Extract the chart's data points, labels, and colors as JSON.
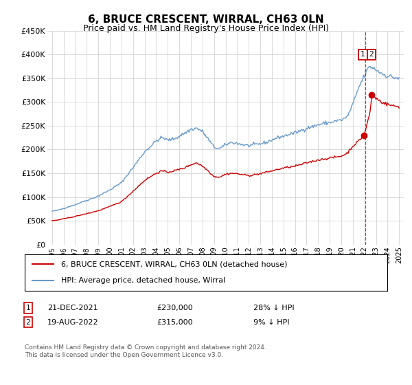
{
  "title": "6, BRUCE CRESCENT, WIRRAL, CH63 0LN",
  "subtitle": "Price paid vs. HM Land Registry's House Price Index (HPI)",
  "footnote": "Contains HM Land Registry data © Crown copyright and database right 2024.\nThis data is licensed under the Open Government Licence v3.0.",
  "legend_label_red": "6, BRUCE CRESCENT, WIRRAL, CH63 0LN (detached house)",
  "legend_label_blue": "HPI: Average price, detached house, Wirral",
  "annotation1_date": "21-DEC-2021",
  "annotation1_price": "£230,000",
  "annotation1_pct": "28% ↓ HPI",
  "annotation2_date": "19-AUG-2022",
  "annotation2_price": "£315,000",
  "annotation2_pct": "9% ↓ HPI",
  "red_color": "#cc0000",
  "blue_color": "#6699cc",
  "grid_color": "#cccccc",
  "background_color": "#ffffff",
  "ylim": [
    0,
    450000
  ],
  "yticks": [
    0,
    50000,
    100000,
    150000,
    200000,
    250000,
    300000,
    350000,
    400000,
    450000
  ],
  "ytick_labels": [
    "£0",
    "£50K",
    "£100K",
    "£150K",
    "£200K",
    "£250K",
    "£300K",
    "£350K",
    "£400K",
    "£450K"
  ],
  "sale1_x": 2021.97,
  "sale1_y": 230000,
  "sale2_x": 2022.63,
  "sale2_y": 315000,
  "vline_x": 2022.05,
  "xlim_left": 1994.6,
  "xlim_right": 2025.4,
  "xtick_years": [
    1995,
    1996,
    1997,
    1998,
    1999,
    2000,
    2001,
    2002,
    2003,
    2004,
    2005,
    2006,
    2007,
    2008,
    2009,
    2010,
    2011,
    2012,
    2013,
    2014,
    2015,
    2016,
    2017,
    2018,
    2019,
    2020,
    2021,
    2022,
    2023,
    2024,
    2025
  ]
}
